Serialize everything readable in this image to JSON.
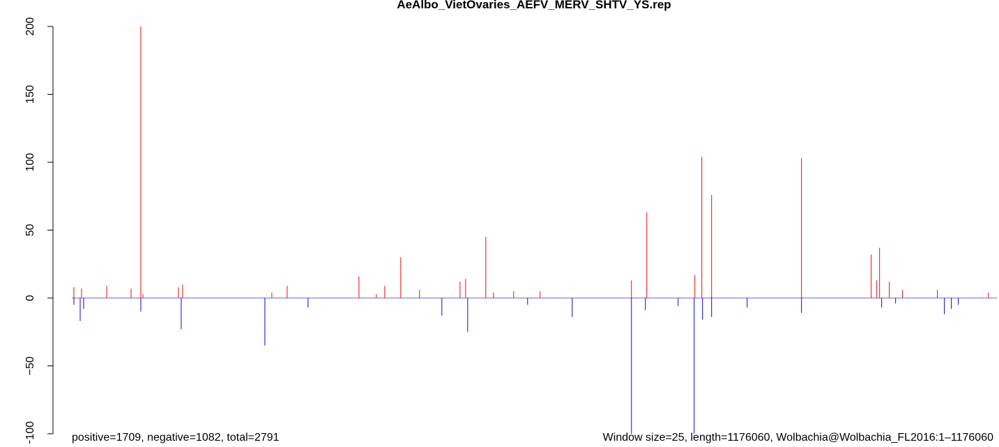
{
  "chart_data": {
    "type": "spike",
    "title": "AeAlbo_VietOvaries_AEFV_MERV_SHTV_YS.rep",
    "annotations": [
      "positive=1709, negative=1082, total=2791",
      "Window size=25, length=1176060, Wolbachia@Wolbachia_FL2016:1–1176060"
    ],
    "xlim": [
      1,
      1176060
    ],
    "ylim": [
      -100,
      200
    ],
    "yticks": [
      {
        "value": -100,
        "label": "−100"
      },
      {
        "value": -50,
        "label": "−50"
      },
      0,
      50,
      100,
      150,
      200
    ],
    "series": [
      {
        "color": "#ff0000",
        "x": [
          2658,
          12404,
          44300,
          75310,
          87714,
          90372,
          135558,
          140874,
          254282,
          273774,
          365032,
          387182,
          397814,
          418192,
          442114,
          493502,
          500590,
          526284,
          536030,
          561724,
          595392,
          711458,
          730950,
          792084,
          800944,
          813348,
          927642,
          1016242,
          1023330,
          1026874,
          1039278,
          1056112,
          1100412,
          1165090
        ],
        "values": [
          8,
          7,
          9,
          7,
          200,
          3,
          8,
          10,
          4,
          9,
          16,
          3,
          9,
          30,
          6,
          12,
          14,
          45,
          4,
          5,
          5,
          13,
          63,
          17,
          104,
          76,
          103,
          32,
          13,
          37,
          12,
          6,
          6,
          4
        ]
      },
      {
        "color": "#0000ff",
        "x": [
          2658,
          10632,
          15062,
          87714,
          139102,
          245422,
          300354,
          470466,
          503248,
          579444,
          636148,
          711458,
          729178,
          770820,
          791198,
          801830,
          813348,
          858534,
          927642,
          1029532,
          1047252,
          1109272,
          1118132,
          1126992
        ],
        "values": [
          -5,
          -17,
          -8,
          -10,
          -23,
          -35,
          -7,
          -13,
          -25,
          -5,
          -14,
          -100,
          -9,
          -6,
          -100,
          -16,
          -14,
          -7,
          -11,
          -7,
          -4,
          -12,
          -8,
          -5
        ]
      }
    ]
  }
}
